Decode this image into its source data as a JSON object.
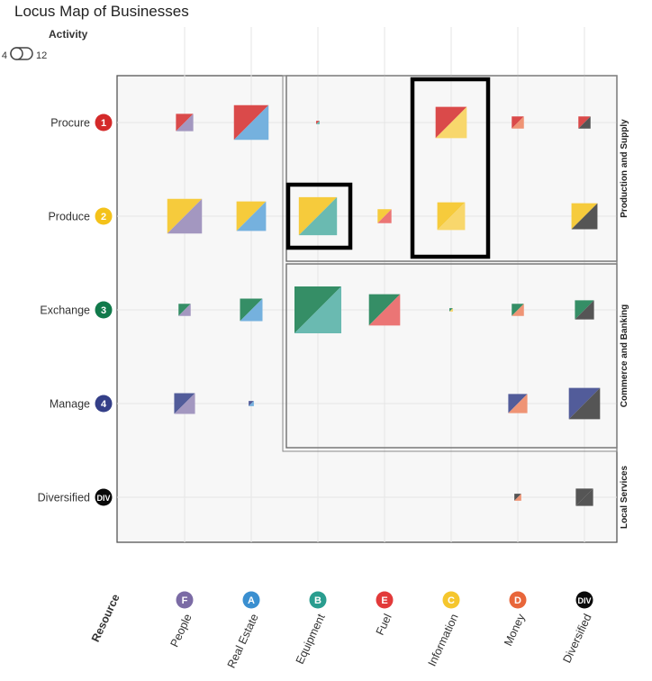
{
  "title": "Locus Map of Businesses",
  "activity_toggle": {
    "label": "Activity",
    "min_label": "4",
    "max_label": "12"
  },
  "colors": {
    "F": "#7b6ba5",
    "A": "#3a8fd0",
    "B": "#2a9d8f",
    "E": "#e23a3a",
    "C": "#f5c62d",
    "D": "#e8663a",
    "DIV": "#0a0a0a",
    "1": "#d42a2a",
    "2": "#f4c21a",
    "3": "#117a4b",
    "4": "#343f88"
  },
  "chart_data": {
    "type": "scatter",
    "title": "Locus Map of Businesses",
    "xlabel": "Resource",
    "columns": [
      {
        "key": "F",
        "badge": "F",
        "label": "People",
        "color": "#7b6ba5"
      },
      {
        "key": "A",
        "badge": "A",
        "label": "Real Estate",
        "color": "#3a8fd0"
      },
      {
        "key": "B",
        "badge": "B",
        "label": "Equipment",
        "color": "#2a9d8f"
      },
      {
        "key": "E",
        "badge": "E",
        "label": "Fuel",
        "color": "#e23a3a"
      },
      {
        "key": "C",
        "badge": "C",
        "label": "Information",
        "color": "#f5c62d"
      },
      {
        "key": "D",
        "badge": "D",
        "label": "Money",
        "color": "#e8663a"
      },
      {
        "key": "DIV",
        "badge": "DIV",
        "label": "Diversified",
        "color": "#0a0a0a"
      }
    ],
    "rows": [
      {
        "key": "1",
        "badge": "1",
        "label": "Procure",
        "color": "#d42a2a"
      },
      {
        "key": "2",
        "badge": "2",
        "label": "Produce",
        "color": "#f4c21a"
      },
      {
        "key": "3",
        "badge": "3",
        "label": "Exchange",
        "color": "#117a4b"
      },
      {
        "key": "4",
        "badge": "4",
        "label": "Manage",
        "color": "#343f88"
      },
      {
        "key": "DIV",
        "badge": "DIV",
        "label": "Diversified",
        "color": "#0a0a0a"
      }
    ],
    "groups": [
      {
        "label": "Production and Supply",
        "rows": [
          "1",
          "2"
        ],
        "columns": [
          "B",
          "E",
          "C",
          "D",
          "DIV"
        ]
      },
      {
        "label": "Commerce and Banking",
        "rows": [
          "3",
          "4"
        ],
        "columns": [
          "B",
          "E",
          "C",
          "D",
          "DIV"
        ]
      },
      {
        "label": "Local Services",
        "rows": [
          "DIV"
        ],
        "columns": [
          "F",
          "A",
          "B",
          "E",
          "C",
          "D",
          "DIV"
        ]
      }
    ],
    "highlights": [
      {
        "row": "2",
        "column": "B"
      },
      {
        "rows": [
          "1",
          "2"
        ],
        "column": "C"
      }
    ],
    "points": [
      {
        "row": "1",
        "column": "F",
        "size": 5
      },
      {
        "row": "1",
        "column": "A",
        "size": 10
      },
      {
        "row": "1",
        "column": "B",
        "size": 1
      },
      {
        "row": "1",
        "column": "C",
        "size": 9
      },
      {
        "row": "1",
        "column": "D",
        "size": 3.5
      },
      {
        "row": "1",
        "column": "DIV",
        "size": 3.5
      },
      {
        "row": "2",
        "column": "F",
        "size": 10
      },
      {
        "row": "2",
        "column": "A",
        "size": 8.5
      },
      {
        "row": "2",
        "column": "B",
        "size": 11
      },
      {
        "row": "2",
        "column": "E",
        "size": 4
      },
      {
        "row": "2",
        "column": "C",
        "size": 8
      },
      {
        "row": "2",
        "column": "DIV",
        "size": 7.5
      },
      {
        "row": "3",
        "column": "F",
        "size": 3.5
      },
      {
        "row": "3",
        "column": "A",
        "size": 6.5
      },
      {
        "row": "3",
        "column": "B",
        "size": 13.5
      },
      {
        "row": "3",
        "column": "E",
        "size": 9
      },
      {
        "row": "3",
        "column": "C",
        "size": 1
      },
      {
        "row": "3",
        "column": "D",
        "size": 3.5
      },
      {
        "row": "3",
        "column": "DIV",
        "size": 5.5
      },
      {
        "row": "4",
        "column": "F",
        "size": 6
      },
      {
        "row": "4",
        "column": "A",
        "size": 1.5
      },
      {
        "row": "4",
        "column": "D",
        "size": 5.5
      },
      {
        "row": "4",
        "column": "DIV",
        "size": 9
      },
      {
        "row": "DIV",
        "column": "D",
        "size": 2
      },
      {
        "row": "DIV",
        "column": "DIV",
        "size": 5
      }
    ]
  }
}
